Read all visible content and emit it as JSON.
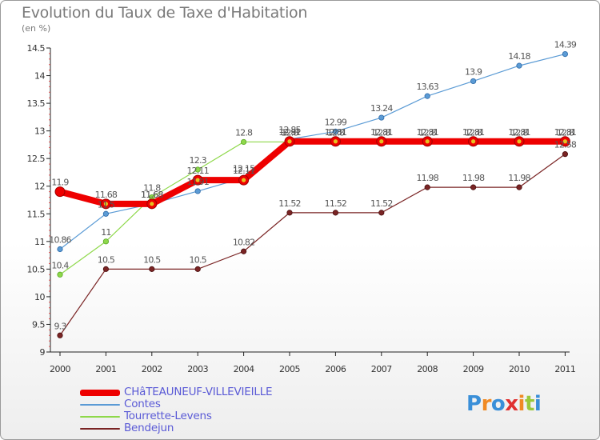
{
  "title": "Evolution du Taux de Taxe d'Habitation",
  "subtitle": "(en %)",
  "logo": {
    "text": "Proxiti",
    "letter_colors": [
      "#3a8fd8",
      "#f08a24",
      "#3a8fd8",
      "#e03030",
      "#f08a24",
      "#9ac83a",
      "#3a8fd8"
    ]
  },
  "chart_data": {
    "type": "line",
    "title": "Evolution du Taux de Taxe d'Habitation",
    "ylabel": "(en %)",
    "xlabel": "",
    "x": [
      "2000",
      "2001",
      "2002",
      "2003",
      "2004",
      "2005",
      "2006",
      "2007",
      "2008",
      "2009",
      "2010",
      "2011"
    ],
    "ylim": [
      9,
      14.5
    ],
    "yticks": [
      "9",
      "9.5",
      "10",
      "10.5",
      "11",
      "11.5",
      "12",
      "12.5",
      "13",
      "13.5",
      "14",
      "14.5"
    ],
    "grid": false,
    "legend_position": "bottom-left",
    "series": [
      {
        "name": "Bendejun",
        "color": "#7a2424",
        "values": [
          9.3,
          10.5,
          10.5,
          10.5,
          10.82,
          11.52,
          11.52,
          11.52,
          11.98,
          11.98,
          11.98,
          12.58
        ],
        "labels": [
          "9.3",
          "10.5",
          "10.5",
          "10.5",
          "10.82",
          "11.52",
          "11.52",
          "11.52",
          "11.98",
          "11.98",
          "11.98",
          "12.58"
        ]
      },
      {
        "name": "Tourrette-Levens",
        "color": "#8ed84a",
        "values": [
          10.4,
          11,
          11.8,
          12.3,
          12.8,
          12.8,
          12.8,
          12.8,
          12.8,
          12.8,
          12.8,
          12.8
        ],
        "labels": [
          "10.4",
          "11",
          "11.8",
          "12.3",
          "12.8",
          "12.8",
          "12.8",
          "12.8",
          "12.8",
          "12.8",
          "12.8",
          "12.8"
        ]
      },
      {
        "name": "Contes",
        "color": "#5b9bd5",
        "values": [
          10.86,
          11.5,
          11.68,
          11.91,
          12.15,
          12.85,
          12.99,
          13.24,
          13.63,
          13.9,
          14.18,
          14.39
        ],
        "labels": [
          "10.86",
          "11.5",
          "11.68",
          "11.91",
          "12.15",
          "12.85",
          "12.99",
          "13.24",
          "13.63",
          "13.9",
          "14.18",
          "14.39"
        ]
      },
      {
        "name": "CHâTEAUNEUF-VILLEVIEILLE",
        "color": "#ee0000",
        "values": [
          11.9,
          11.68,
          11.68,
          12.11,
          12.11,
          12.81,
          12.81,
          12.81,
          12.81,
          12.81,
          12.81,
          12.81
        ],
        "labels": [
          "11.9",
          "11.68",
          "11.68",
          "12.11",
          "12.11",
          "12.81",
          "12.81",
          "12.81",
          "12.81",
          "12.81",
          "12.81",
          "12.81"
        ]
      }
    ]
  },
  "legend": [
    {
      "name": "CHâTEAUNEUF-VILLEVIEILLE",
      "color": "#ee0000",
      "thick": true
    },
    {
      "name": "Contes",
      "color": "#5b9bd5",
      "thick": false
    },
    {
      "name": "Tourrette-Levens",
      "color": "#8ed84a",
      "thick": false
    },
    {
      "name": "Bendejun",
      "color": "#7a2424",
      "thick": false
    }
  ]
}
